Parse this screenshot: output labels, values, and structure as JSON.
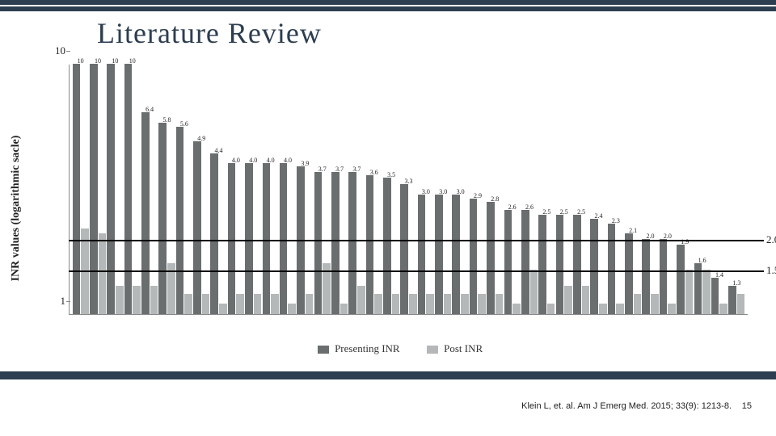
{
  "title": "Literature  Review",
  "chart": {
    "type": "bar",
    "yaxis_label": "INR values (logarithmic sacle)",
    "yaxis_scale": "log",
    "ylim": [
      1,
      10
    ],
    "ytick_values": [
      1,
      10
    ],
    "ytick_labels": [
      "1",
      "10"
    ],
    "reference_lines": [
      {
        "value": 2.0,
        "label": "2.0"
      },
      {
        "value": 1.5,
        "label": "1.5"
      }
    ],
    "series": [
      {
        "name": "Presenting INR",
        "color": "#6a6e6e"
      },
      {
        "name": "Post INR",
        "color": "#b4b8b9"
      }
    ],
    "value_label_fontsize": 8,
    "background_color": "#ffffff",
    "axis_color": "#888888",
    "refline_color": "#000000",
    "data": [
      {
        "presenting": 10.0,
        "post": 2.2,
        "label": "10"
      },
      {
        "presenting": 10.0,
        "post": 2.1,
        "label": "10"
      },
      {
        "presenting": 10.0,
        "post": 1.3,
        "label": "10"
      },
      {
        "presenting": 10.0,
        "post": 1.3,
        "label": "10"
      },
      {
        "presenting": 6.4,
        "post": 1.3,
        "label": "6.4"
      },
      {
        "presenting": 5.8,
        "post": 1.6,
        "label": "5.8"
      },
      {
        "presenting": 5.6,
        "post": 1.2,
        "label": "5.6"
      },
      {
        "presenting": 4.9,
        "post": 1.2,
        "label": "4.9"
      },
      {
        "presenting": 4.4,
        "post": 1.1,
        "label": "4.4"
      },
      {
        "presenting": 4.0,
        "post": 1.2,
        "label": "4.0"
      },
      {
        "presenting": 4.0,
        "post": 1.2,
        "label": "4.0"
      },
      {
        "presenting": 4.0,
        "post": 1.2,
        "label": "4.0"
      },
      {
        "presenting": 4.0,
        "post": 1.1,
        "label": "4.0"
      },
      {
        "presenting": 3.9,
        "post": 1.2,
        "label": "3.9"
      },
      {
        "presenting": 3.7,
        "post": 1.6,
        "label": "3.7"
      },
      {
        "presenting": 3.7,
        "post": 1.1,
        "label": "3.7"
      },
      {
        "presenting": 3.7,
        "post": 1.3,
        "label": "3.7"
      },
      {
        "presenting": 3.6,
        "post": 1.2,
        "label": "3.6"
      },
      {
        "presenting": 3.5,
        "post": 1.2,
        "label": "3.5"
      },
      {
        "presenting": 3.3,
        "post": 1.2,
        "label": "3.3"
      },
      {
        "presenting": 3.0,
        "post": 1.2,
        "label": "3.0"
      },
      {
        "presenting": 3.0,
        "post": 1.2,
        "label": "3.0"
      },
      {
        "presenting": 3.0,
        "post": 1.2,
        "label": "3.0"
      },
      {
        "presenting": 2.9,
        "post": 1.2,
        "label": "2.9"
      },
      {
        "presenting": 2.8,
        "post": 1.2,
        "label": "2.8"
      },
      {
        "presenting": 2.6,
        "post": 1.1,
        "label": "2.6"
      },
      {
        "presenting": 2.6,
        "post": 1.5,
        "label": "2.6"
      },
      {
        "presenting": 2.5,
        "post": 1.1,
        "label": "2.5"
      },
      {
        "presenting": 2.5,
        "post": 1.3,
        "label": "2.5"
      },
      {
        "presenting": 2.5,
        "post": 1.3,
        "label": "2.5"
      },
      {
        "presenting": 2.4,
        "post": 1.1,
        "label": "2.4"
      },
      {
        "presenting": 2.3,
        "post": 1.1,
        "label": "2.3"
      },
      {
        "presenting": 2.1,
        "post": 1.2,
        "label": "2.1"
      },
      {
        "presenting": 2.0,
        "post": 1.2,
        "label": "2.0"
      },
      {
        "presenting": 2.0,
        "post": 1.1,
        "label": "2.0"
      },
      {
        "presenting": 1.9,
        "post": 1.5,
        "label": "1.9"
      },
      {
        "presenting": 1.6,
        "post": 1.5,
        "label": "1.6"
      },
      {
        "presenting": 1.4,
        "post": 1.1,
        "label": "1.4"
      },
      {
        "presenting": 1.3,
        "post": 1.2,
        "label": "1.3"
      }
    ]
  },
  "citation": "Klein L,  et. al.  Am J Emerg Med.  2015; 33(9): 1213-8.",
  "page_number": "15"
}
